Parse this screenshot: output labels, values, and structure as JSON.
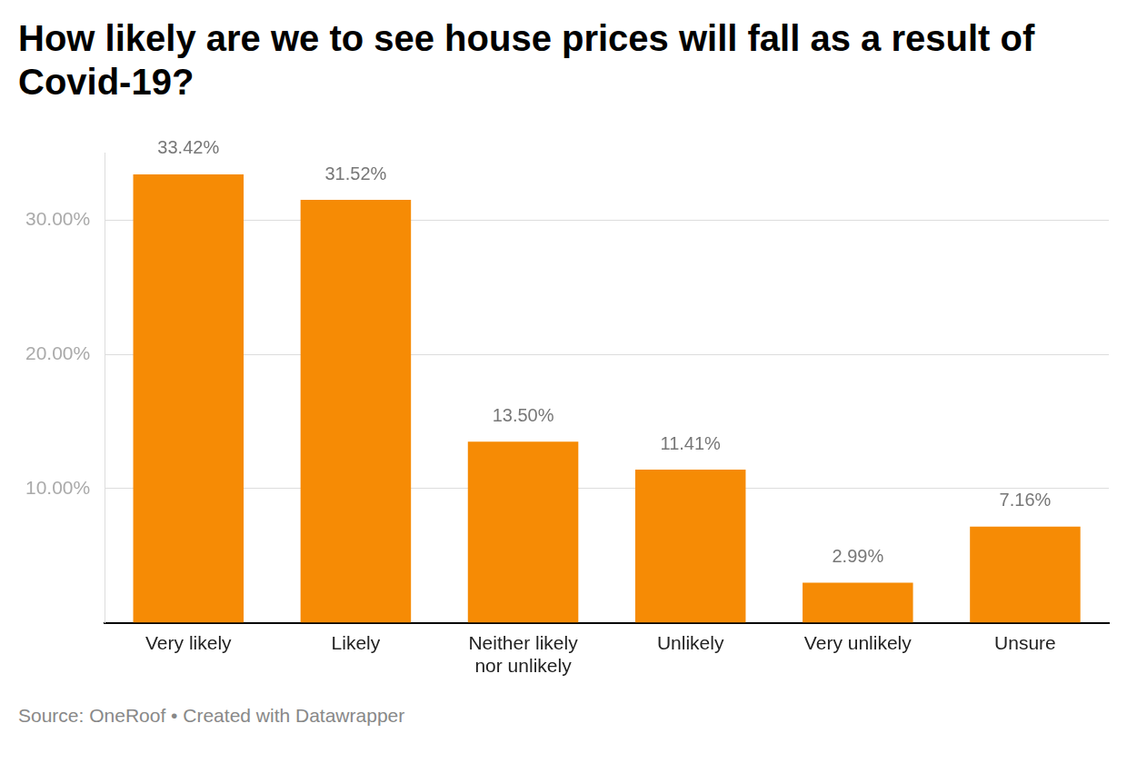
{
  "chart_data": {
    "type": "bar",
    "title": "How likely are we to see house prices will fall as a result of Covid-19?",
    "source": "Source: OneRoof • Created with Datawrapper",
    "categories": [
      "Very likely",
      "Likely",
      "Neither likely nor unlikely",
      "Unlikely",
      "Very unlikely",
      "Unsure"
    ],
    "values": [
      33.42,
      31.52,
      13.5,
      11.41,
      2.99,
      7.16
    ],
    "value_labels": [
      "33.42%",
      "31.52%",
      "13.50%",
      "11.41%",
      "2.99%",
      "7.16%"
    ],
    "color": "#f68b05",
    "ylim": [
      0,
      35
    ],
    "yticks": [
      {
        "value": 10,
        "label": "10.00%"
      },
      {
        "value": 20,
        "label": "20.00%"
      },
      {
        "value": 30,
        "label": "30.00%"
      }
    ],
    "grid": true,
    "data_labels": true
  }
}
